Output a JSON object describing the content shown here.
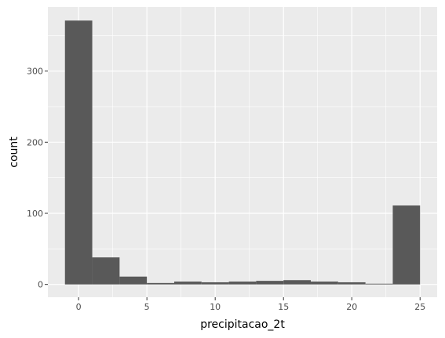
{
  "chart_data": {
    "type": "bar",
    "xlabel": "precipitacao_2t",
    "ylabel": "count",
    "xlim": [
      -2.25,
      26.25
    ],
    "ylim": [
      -18,
      390
    ],
    "x_ticks": [
      0,
      5,
      10,
      15,
      20,
      25
    ],
    "y_ticks": [
      0,
      100,
      200,
      300
    ],
    "bins": [
      {
        "start": -1,
        "end": 1,
        "count": 371
      },
      {
        "start": 1,
        "end": 3,
        "count": 38
      },
      {
        "start": 3,
        "end": 5,
        "count": 11
      },
      {
        "start": 5,
        "end": 7,
        "count": 2
      },
      {
        "start": 7,
        "end": 9,
        "count": 4
      },
      {
        "start": 9,
        "end": 11,
        "count": 3
      },
      {
        "start": 11,
        "end": 13,
        "count": 4
      },
      {
        "start": 13,
        "end": 15,
        "count": 5
      },
      {
        "start": 15,
        "end": 17,
        "count": 6
      },
      {
        "start": 17,
        "end": 19,
        "count": 4
      },
      {
        "start": 19,
        "end": 21,
        "count": 3
      },
      {
        "start": 21,
        "end": 23,
        "count": 1
      },
      {
        "start": 23,
        "end": 25,
        "count": 111
      }
    ],
    "grid": true,
    "colors": {
      "panel": "#ebebeb",
      "grid_major": "#ffffff",
      "bar_fill": "#595959"
    }
  }
}
